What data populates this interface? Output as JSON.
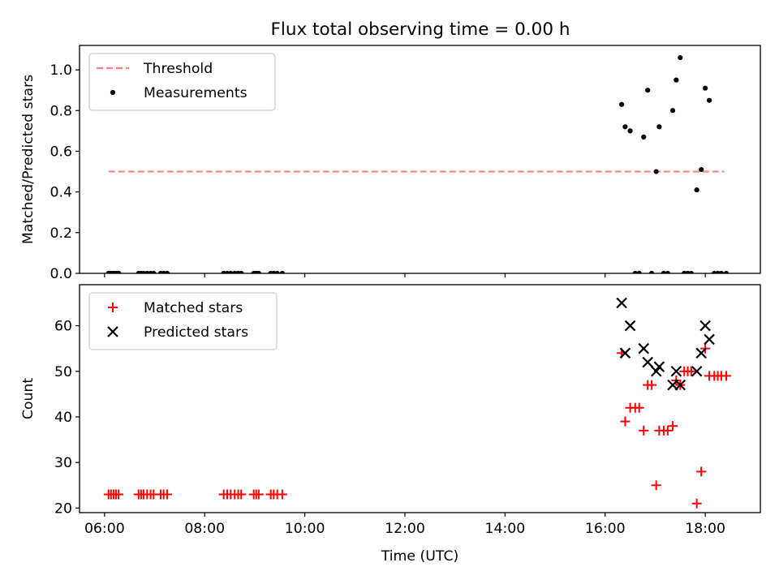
{
  "title": "Flux total observing time = 0.00 h",
  "chart_data": [
    {
      "type": "scatter",
      "panel": "top",
      "title": "Flux total observing time = 0.00 h",
      "ylabel": "Matched/Predicted stars",
      "xlabel": "",
      "xlim": [
        5.5,
        19.1
      ],
      "ylim": [
        0,
        1.12
      ],
      "yticks": [
        0.0,
        0.2,
        0.4,
        0.6,
        0.8,
        1.0
      ],
      "ytick_labels": [
        "0.0",
        "0.2",
        "0.4",
        "0.6",
        "0.8",
        "1.0"
      ],
      "xticks": [
        6,
        8,
        10,
        12,
        14,
        16,
        18
      ],
      "legend_position": "top-left",
      "threshold": {
        "name": "Threshold",
        "y": 0.5,
        "x_start": 6.08,
        "x_end": 18.38,
        "color": "#ff8080",
        "style": "dashed"
      },
      "series": [
        {
          "name": "Measurements",
          "color": "#000000",
          "marker": "dot",
          "points": [
            [
              6.08,
              0
            ],
            [
              6.13,
              0
            ],
            [
              6.18,
              0
            ],
            [
              6.23,
              0
            ],
            [
              6.28,
              0
            ],
            [
              6.68,
              0
            ],
            [
              6.73,
              0
            ],
            [
              6.78,
              0
            ],
            [
              6.85,
              0
            ],
            [
              6.92,
              0
            ],
            [
              6.98,
              0
            ],
            [
              7.12,
              0
            ],
            [
              7.18,
              0
            ],
            [
              7.25,
              0
            ],
            [
              8.38,
              0
            ],
            [
              8.45,
              0
            ],
            [
              8.52,
              0
            ],
            [
              8.6,
              0
            ],
            [
              8.67,
              0
            ],
            [
              8.73,
              0
            ],
            [
              8.98,
              0
            ],
            [
              9.03,
              0
            ],
            [
              9.08,
              0
            ],
            [
              9.32,
              0
            ],
            [
              9.38,
              0
            ],
            [
              9.45,
              0
            ],
            [
              9.55,
              0
            ],
            [
              16.33,
              0.83
            ],
            [
              16.4,
              0.72
            ],
            [
              16.5,
              0.7
            ],
            [
              16.6,
              0
            ],
            [
              16.68,
              0
            ],
            [
              16.77,
              0.67
            ],
            [
              16.85,
              0.9
            ],
            [
              16.93,
              0
            ],
            [
              17.02,
              0.5
            ],
            [
              17.08,
              0.72
            ],
            [
              17.17,
              0
            ],
            [
              17.25,
              0
            ],
            [
              17.35,
              0.8
            ],
            [
              17.42,
              0.95
            ],
            [
              17.5,
              1.06
            ],
            [
              17.58,
              0
            ],
            [
              17.65,
              0
            ],
            [
              17.72,
              0
            ],
            [
              17.83,
              0.41
            ],
            [
              17.92,
              0.51
            ],
            [
              18.0,
              0.91
            ],
            [
              18.08,
              0.85
            ],
            [
              18.18,
              0
            ],
            [
              18.25,
              0
            ],
            [
              18.32,
              0
            ],
            [
              18.42,
              0
            ]
          ]
        }
      ]
    },
    {
      "type": "scatter",
      "panel": "bottom",
      "ylabel": "Count",
      "xlabel": "Time (UTC)",
      "xlim": [
        5.5,
        19.1
      ],
      "ylim": [
        19,
        69
      ],
      "yticks": [
        20,
        30,
        40,
        50,
        60
      ],
      "ytick_labels": [
        "20",
        "30",
        "40",
        "50",
        "60"
      ],
      "xticks": [
        6,
        8,
        10,
        12,
        14,
        16,
        18
      ],
      "xtick_labels": [
        "06:00",
        "08:00",
        "10:00",
        "12:00",
        "14:00",
        "16:00",
        "18:00"
      ],
      "legend_position": "top-left",
      "series": [
        {
          "name": "Matched stars",
          "color": "#ff0000",
          "marker": "plus",
          "points": [
            [
              6.08,
              23
            ],
            [
              6.13,
              23
            ],
            [
              6.18,
              23
            ],
            [
              6.23,
              23
            ],
            [
              6.28,
              23
            ],
            [
              6.68,
              23
            ],
            [
              6.73,
              23
            ],
            [
              6.78,
              23
            ],
            [
              6.85,
              23
            ],
            [
              6.92,
              23
            ],
            [
              6.98,
              23
            ],
            [
              7.12,
              23
            ],
            [
              7.18,
              23
            ],
            [
              7.25,
              23
            ],
            [
              8.38,
              23
            ],
            [
              8.45,
              23
            ],
            [
              8.52,
              23
            ],
            [
              8.6,
              23
            ],
            [
              8.67,
              23
            ],
            [
              8.73,
              23
            ],
            [
              8.98,
              23
            ],
            [
              9.03,
              23
            ],
            [
              9.08,
              23
            ],
            [
              9.32,
              23
            ],
            [
              9.38,
              23
            ],
            [
              9.45,
              23
            ],
            [
              9.55,
              23
            ],
            [
              16.33,
              54
            ],
            [
              16.4,
              39
            ],
            [
              16.5,
              42
            ],
            [
              16.6,
              42
            ],
            [
              16.68,
              42
            ],
            [
              16.77,
              37
            ],
            [
              16.85,
              47
            ],
            [
              16.93,
              47
            ],
            [
              17.02,
              25
            ],
            [
              17.08,
              37
            ],
            [
              17.17,
              37
            ],
            [
              17.25,
              37
            ],
            [
              17.35,
              38
            ],
            [
              17.42,
              48
            ],
            [
              17.5,
              47
            ],
            [
              17.58,
              50
            ],
            [
              17.65,
              50
            ],
            [
              17.72,
              50
            ],
            [
              17.83,
              21
            ],
            [
              17.92,
              28
            ],
            [
              18.0,
              55
            ],
            [
              18.08,
              49
            ],
            [
              18.18,
              49
            ],
            [
              18.25,
              49
            ],
            [
              18.32,
              49
            ],
            [
              18.42,
              49
            ]
          ]
        },
        {
          "name": "Predicted stars",
          "color": "#000000",
          "marker": "x",
          "points": [
            [
              16.33,
              65
            ],
            [
              16.4,
              54
            ],
            [
              16.5,
              60
            ],
            [
              16.77,
              55
            ],
            [
              16.85,
              52
            ],
            [
              17.02,
              50
            ],
            [
              17.08,
              51
            ],
            [
              17.35,
              47
            ],
            [
              17.42,
              50
            ],
            [
              17.5,
              47
            ],
            [
              17.83,
              50
            ],
            [
              17.92,
              54
            ],
            [
              18.0,
              60
            ],
            [
              18.08,
              57
            ]
          ]
        }
      ]
    }
  ]
}
